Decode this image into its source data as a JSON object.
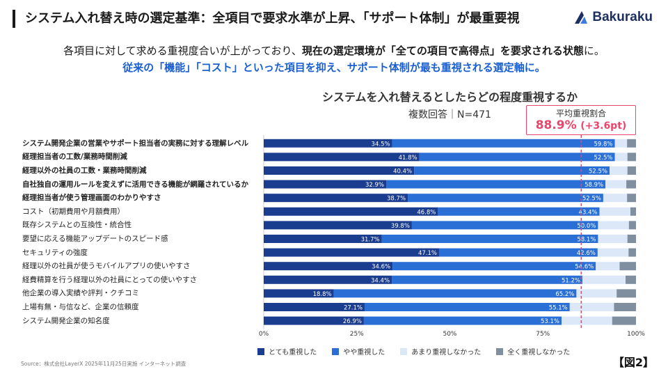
{
  "header": {
    "title": "システム入れ替え時の選定基準：全項目で要求水準が上昇、「サポート体制」が最重要視",
    "logo_text": "Bakuraku"
  },
  "lead": {
    "line1_part1": "各項目に対して求める重視度合いが上がっており、",
    "line1_bold": "現在の選定環境が「全ての項目で高得点」を要求される状態",
    "line1_part2": "に。",
    "line2": "従来の「機能」「コスト」といった項目を抑え、サポート体制が最も重視される選定軸に。"
  },
  "average_box": {
    "label": "平均重視割合",
    "value": "88.9%",
    "delta": "(+3.6pt)",
    "average_percent": 88.9
  },
  "chart_data": {
    "type": "bar",
    "orientation": "horizontal-stacked-100",
    "title": "システムを入れ替えるとしたらどの程度重視するか",
    "subtitle": "複数回答｜N=471",
    "xlim": [
      0,
      100
    ],
    "x_ticks": [
      "0%",
      "25%",
      "50%",
      "75%",
      "100%"
    ],
    "categories": [
      "システム開発企業の営業やサポート担当者の実務に対する理解レベル",
      "経理担当者の工数/業務時間削減",
      "経理以外の社員の工数・業務時間削減",
      "自社独自の運用ルールを変えずに活用できる機能が網羅されているか",
      "経理担当者が使う管理画面のわかりやすさ",
      "コスト（初期費用や月額費用）",
      "既存システムとの互換性・統合性",
      "要望に応える機能アップデートのスピード感",
      "セキュリティの強度",
      "経理以外の社員が使うモバイルアプリの使いやすさ",
      "経費精算を行う経理以外の社員にとっての使いやすさ",
      "他企業の導入実績や評判・クチコミ",
      "上場有無・与信など、企業の信頼度",
      "システム開発企業の知名度"
    ],
    "bold_categories": [
      true,
      true,
      true,
      true,
      true,
      false,
      false,
      false,
      false,
      false,
      false,
      false,
      false,
      false
    ],
    "series": [
      {
        "name": "とても重視した",
        "color": "#1a3d8f",
        "values": [
          34.5,
          41.8,
          40.4,
          32.9,
          38.7,
          46.8,
          39.8,
          31.7,
          47.1,
          34.6,
          34.4,
          18.8,
          27.1,
          26.9
        ]
      },
      {
        "name": "やや重視した",
        "color": "#2a6fd6",
        "values": [
          59.8,
          52.5,
          52.5,
          58.9,
          52.5,
          43.4,
          50.0,
          58.1,
          42.6,
          54.6,
          51.2,
          65.2,
          55.1,
          53.1
        ]
      },
      {
        "name": "あまり重視しなかった",
        "color": "#dce8f8",
        "values": [
          3.3,
          3.4,
          4.8,
          5.6,
          6.4,
          8.3,
          8.3,
          7.9,
          8.3,
          6.4,
          11.6,
          10.8,
          11.9,
          13.6
        ]
      },
      {
        "name": "全く重視しなかった",
        "color": "#7f8fa0",
        "values": [
          2.4,
          2.3,
          2.3,
          2.6,
          2.4,
          1.5,
          1.9,
          2.3,
          2.0,
          4.4,
          2.8,
          5.2,
          5.9,
          6.4
        ]
      }
    ],
    "value_labels": {
      "series0": [
        "34.5%",
        "41.8%",
        "40.4%",
        "32.9%",
        "38.7%",
        "46.8%",
        "39.8%",
        "31.7%",
        "47.1%",
        "34.6%",
        "34.4%",
        "18.8%",
        "27.1%",
        "26.9%"
      ],
      "series1": [
        "59.8%",
        "52.5%",
        "52.5%",
        "58.9%",
        "52.5%",
        "43.4%",
        "50.0%",
        "58.1%",
        "42.6%",
        "54.6%",
        "51.2%",
        "65.2%",
        "55.1%",
        "53.1%"
      ]
    },
    "reference_line_percent": 85.3,
    "label_colors": {
      "text_on_bar": "#ffffff",
      "axis_text": "#333333",
      "reference_line": "#e8466a"
    }
  },
  "source": "Source：株式会社LayerX 2025年11月25日実施 インターネット調査",
  "figure_label": "【図2】"
}
